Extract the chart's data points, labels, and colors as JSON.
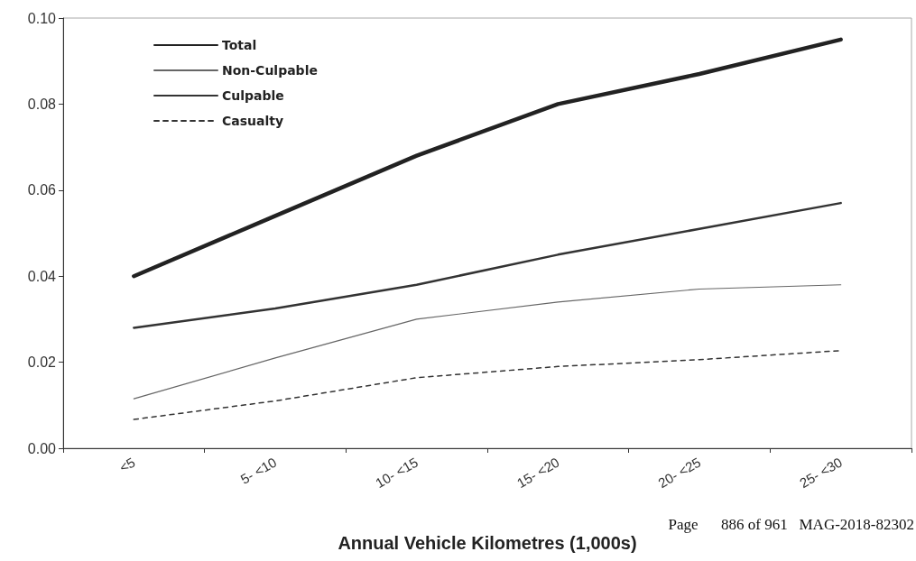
{
  "chart_data": {
    "type": "line",
    "xlabel": "Annual Vehicle Kilometres (1,000s)",
    "categories": [
      "<5",
      "5- <10",
      "10- <15",
      "15- <20",
      "20- <25",
      "25- <30"
    ],
    "series": [
      {
        "name": "Total",
        "color": "#222222",
        "line_style": "solid",
        "values": [
          0.04,
          0.054,
          0.068,
          0.08,
          0.087,
          0.095
        ]
      },
      {
        "name": "Non-Culpable",
        "color": "#666666",
        "line_style": "solid",
        "values": [
          0.0115,
          0.021,
          0.03,
          0.034,
          0.037,
          0.038
        ]
      },
      {
        "name": "Culpable",
        "color": "#333333",
        "line_style": "solid",
        "values": [
          0.028,
          0.0325,
          0.038,
          0.045,
          0.051,
          0.057
        ]
      },
      {
        "name": "Casualty",
        "color": "#333333",
        "line_style": "dashed",
        "values": [
          0.0067,
          0.011,
          0.0164,
          0.019,
          0.0206,
          0.0227
        ]
      }
    ],
    "ylim": [
      0,
      0.1
    ],
    "yticks": [
      {
        "value": 0,
        "label": "0.00"
      },
      {
        "value": 0.02,
        "label": "0.02"
      },
      {
        "value": 0.04,
        "label": "0.04"
      },
      {
        "value": 0.06,
        "label": "0.06"
      },
      {
        "value": 0.08,
        "label": "0.08"
      },
      {
        "value": 0.1,
        "label": "0.10"
      }
    ],
    "grid": false,
    "legend": "top left",
    "marker": "none",
    "annotations": [
      "Page      886 of 961   MAG-2018-82302"
    ]
  }
}
